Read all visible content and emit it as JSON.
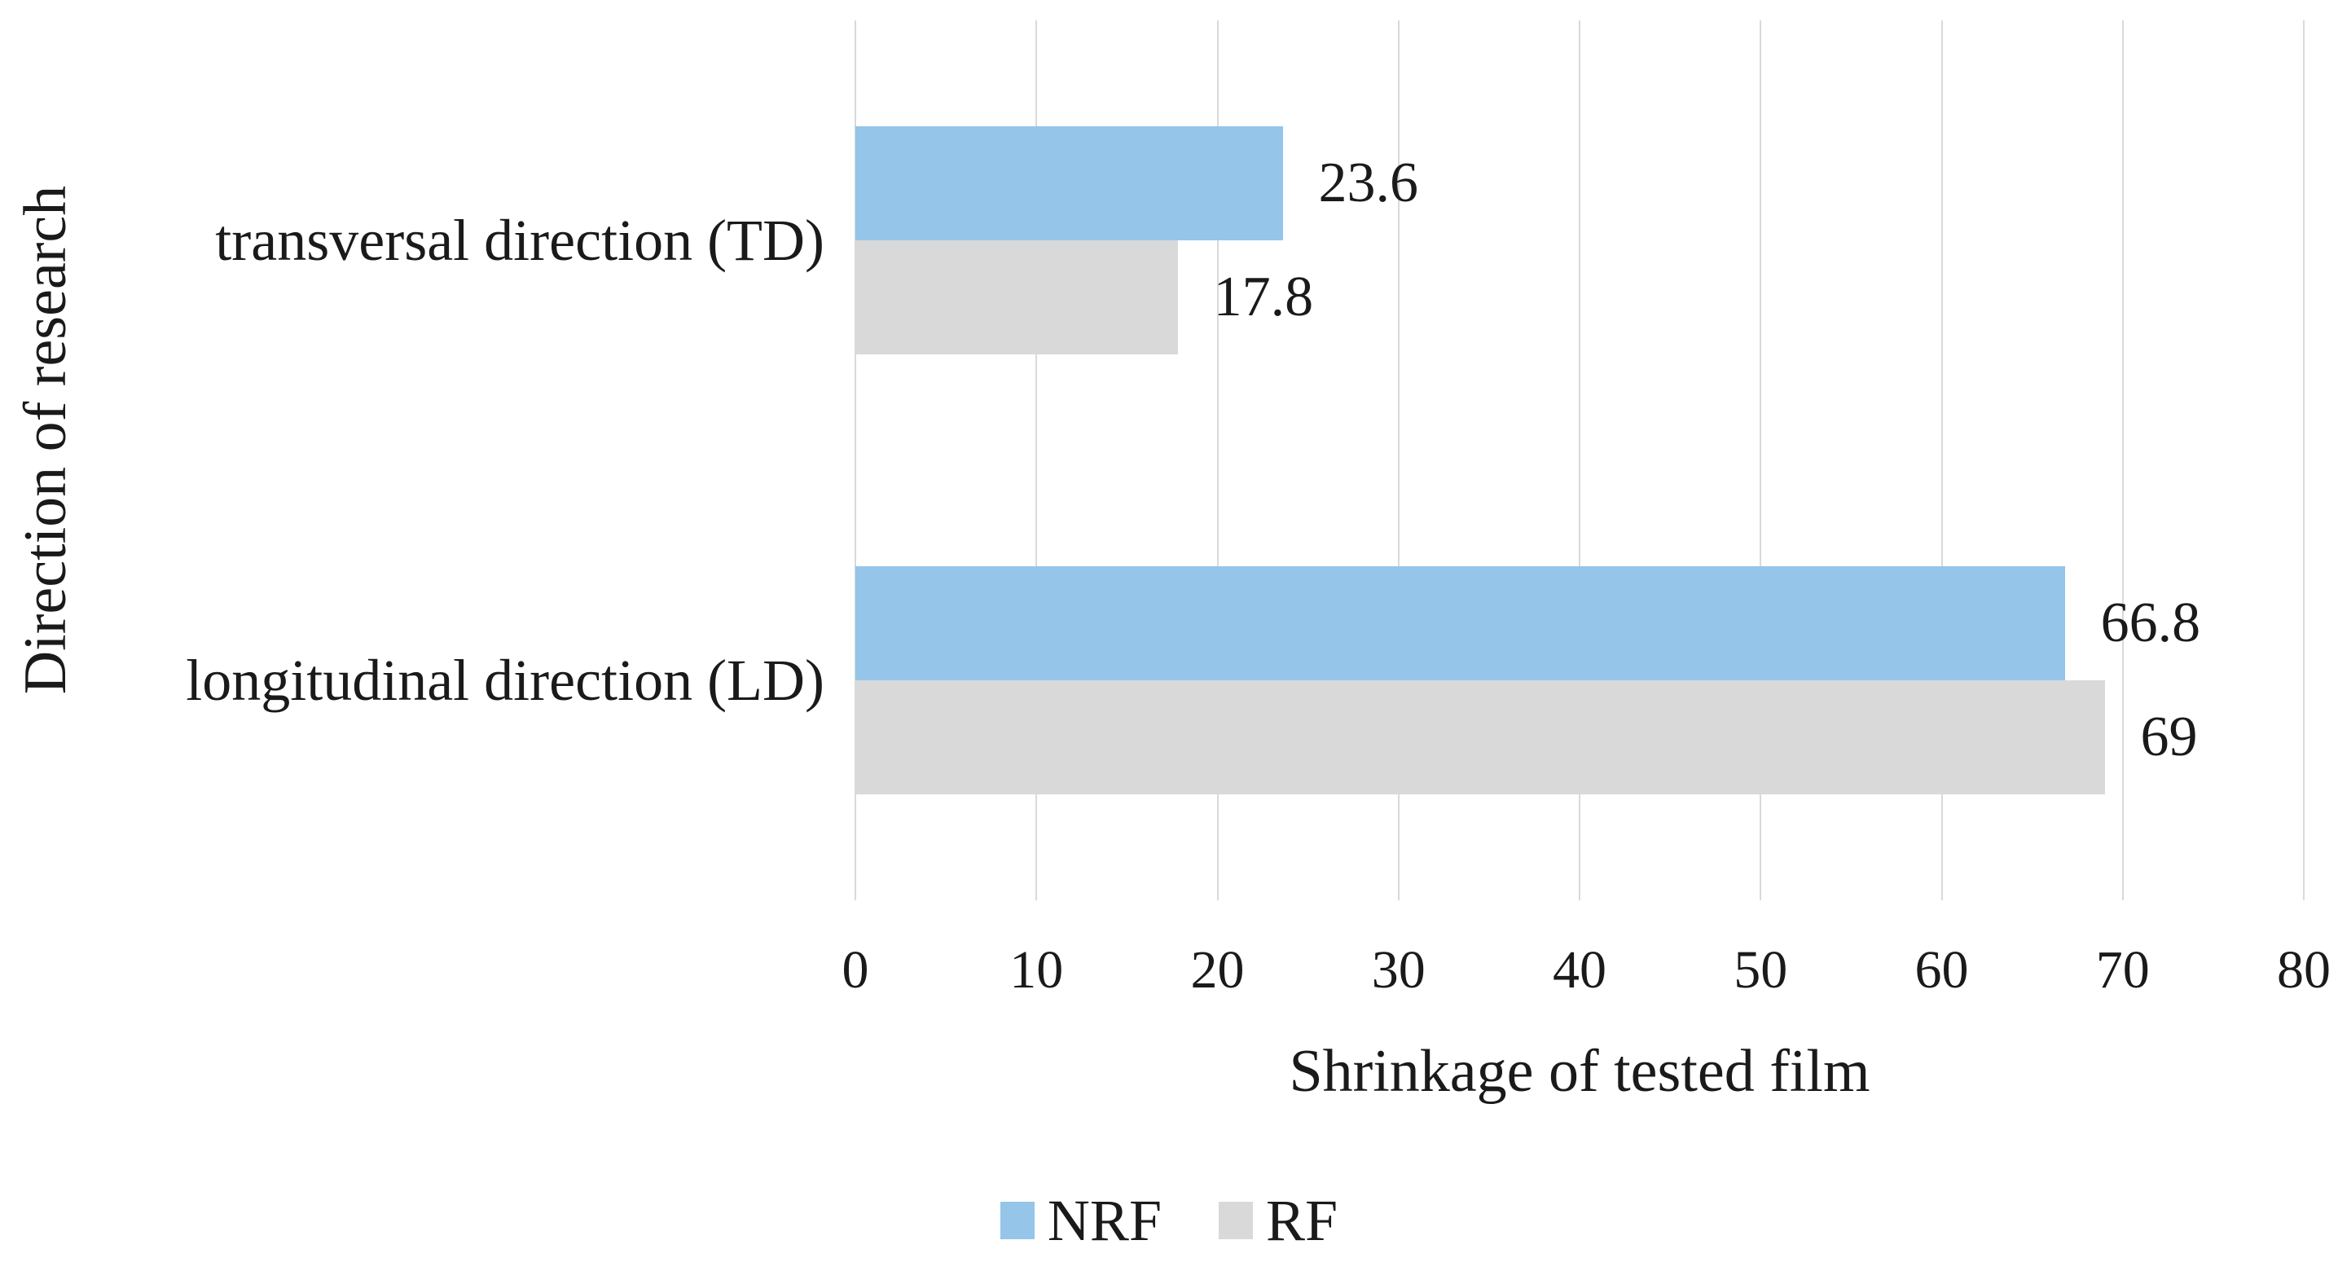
{
  "chart_data": {
    "type": "bar",
    "orientation": "horizontal",
    "title": "",
    "xlabel": "Shrinkage of tested film",
    "ylabel": "Direction of research",
    "categories": [
      "transversal direction (TD)",
      "longitudinal direction (LD)"
    ],
    "series": [
      {
        "name": "NRF",
        "color": "#95c5e9",
        "values": [
          23.6,
          66.8
        ],
        "labels": [
          "23.6",
          "66.8"
        ]
      },
      {
        "name": "RF",
        "color": "#d9d9d9",
        "values": [
          17.8,
          69.0
        ],
        "labels": [
          "17.8",
          "69"
        ]
      }
    ],
    "xlim": [
      0,
      80
    ],
    "xticks": [
      0,
      10,
      20,
      30,
      40,
      50,
      60,
      70,
      80
    ],
    "grid": "vertical",
    "gridline_color": "#d9d9d9",
    "background_color": "#ffffff",
    "text_color": "#1a1a1a",
    "legend_position": "bottom",
    "data_labels_position": "outside-end"
  }
}
